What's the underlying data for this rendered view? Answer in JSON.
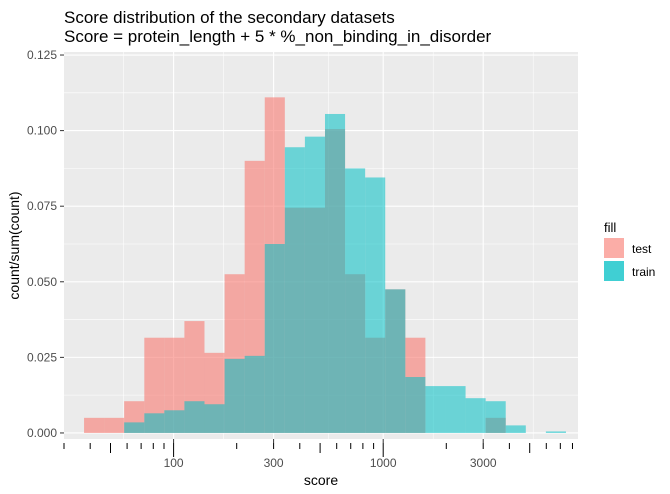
{
  "chart_data": {
    "type": "bar",
    "title": "Score distribution of the secondary datasets",
    "subtitle": "Score = protein_length + 5 * %_non_binding_in_disorder",
    "xlabel": "score",
    "ylabel": "count/sum(count)",
    "x_scale": "log10",
    "xlim": [
      30,
      8500
    ],
    "ylim": [
      -0.002,
      0.126
    ],
    "x_ticks": [
      {
        "value": 100,
        "label": "100"
      },
      {
        "value": 300,
        "label": "300"
      },
      {
        "value": 1000,
        "label": "1000"
      },
      {
        "value": 3000,
        "label": "3000"
      }
    ],
    "y_ticks": [
      {
        "value": 0,
        "label": "0.000"
      },
      {
        "value": 0.025,
        "label": "0.025"
      },
      {
        "value": 0.05,
        "label": "0.050"
      },
      {
        "value": 0.075,
        "label": "0.075"
      },
      {
        "value": 0.1,
        "label": "0.100"
      },
      {
        "value": 0.125,
        "label": "0.125"
      }
    ],
    "bin_edges": [
      30,
      37.4,
      46.6,
      58.1,
      72.5,
      90.3,
      112.6,
      140.4,
      175.1,
      218.3,
      272.2,
      339.4,
      423.1,
      527.6,
      657.8,
      820.2,
      1022.6,
      1275.1,
      1589.8,
      1982.3,
      2471.6,
      3081.7,
      3842.4,
      4790.8,
      5973.4,
      7448.1
    ],
    "series": [
      {
        "name": "test",
        "color": "#F8766D",
        "values": [
          0.0,
          0.005,
          0.005,
          0.0105,
          0.0315,
          0.0315,
          0.037,
          0.0265,
          0.0525,
          0.09,
          0.111,
          0.0745,
          0.0745,
          0.1005,
          0.0525,
          0.0315,
          0.0475,
          0.0315,
          0.0,
          0.0,
          0.0,
          0.005,
          0.0,
          0.0,
          0.0
        ]
      },
      {
        "name": "train",
        "color": "#00BFC4",
        "values": [
          0.0,
          0.0,
          0.0,
          0.0035,
          0.0065,
          0.0075,
          0.0105,
          0.0095,
          0.0245,
          0.0255,
          0.0625,
          0.0945,
          0.098,
          0.1055,
          0.0875,
          0.0845,
          0.0475,
          0.0185,
          0.0155,
          0.0155,
          0.0115,
          0.0105,
          0.0025,
          0.0,
          0.0005
        ]
      }
    ],
    "legend": {
      "title": "fill",
      "position": "right"
    },
    "grid": true
  }
}
